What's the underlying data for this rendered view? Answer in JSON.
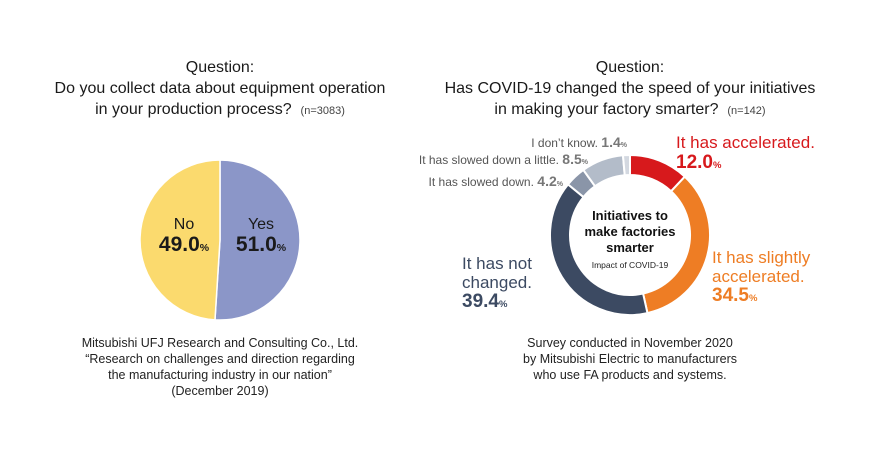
{
  "left": {
    "question": {
      "head": "Question:",
      "line1": "Do you collect data about equipment operation",
      "line2": "in your production process?",
      "n": "(n=3083)"
    },
    "source": [
      "Mitsubishi UFJ Research and Consulting Co., Ltd.",
      "“Research on challenges and direction regarding",
      "the manufacturing industry in our nation”",
      "(December 2019)"
    ]
  },
  "right": {
    "question": {
      "head": "Question:",
      "line1": "Has COVID-19 changed the speed of your initiatives",
      "line2": "in making your factory smarter?",
      "n": "(n=142)"
    },
    "center": {
      "line1": "Initiatives to",
      "line2": "make factories",
      "line3": "smarter",
      "sub": "Impact of COVID-19"
    },
    "source": [
      "Survey conducted in November 2020",
      "by Mitsubishi Electric to manufacturers",
      "who use FA products and systems."
    ]
  },
  "pct_symbol": "%",
  "chart_data": [
    {
      "type": "pie",
      "title": "Do you collect data about equipment operation in your production process?",
      "categories": [
        "Yes",
        "No"
      ],
      "values": [
        51.0,
        49.0
      ],
      "value_labels": [
        "51.0",
        "49.0"
      ],
      "colors": [
        "#8b96c8",
        "#fbda6e"
      ],
      "unit": "%"
    },
    {
      "type": "pie",
      "title": "Has COVID-19 changed the speed of your initiatives in making your factory smarter?",
      "categories": [
        "It has accelerated.",
        "It has slightly accelerated.",
        "It has not changed.",
        "It has slowed down.",
        "It has slowed down a little.",
        "I don’t know."
      ],
      "values": [
        12.0,
        34.5,
        39.4,
        4.2,
        8.5,
        1.4
      ],
      "value_labels": [
        "12.0",
        "34.5",
        "39.4",
        "4.2",
        "8.5",
        "1.4"
      ],
      "colors": [
        "#d7191c",
        "#ee7d24",
        "#3c4a62",
        "#8a95a8",
        "#b3bcc9",
        "#d3d8e0"
      ],
      "unit": "%"
    }
  ]
}
